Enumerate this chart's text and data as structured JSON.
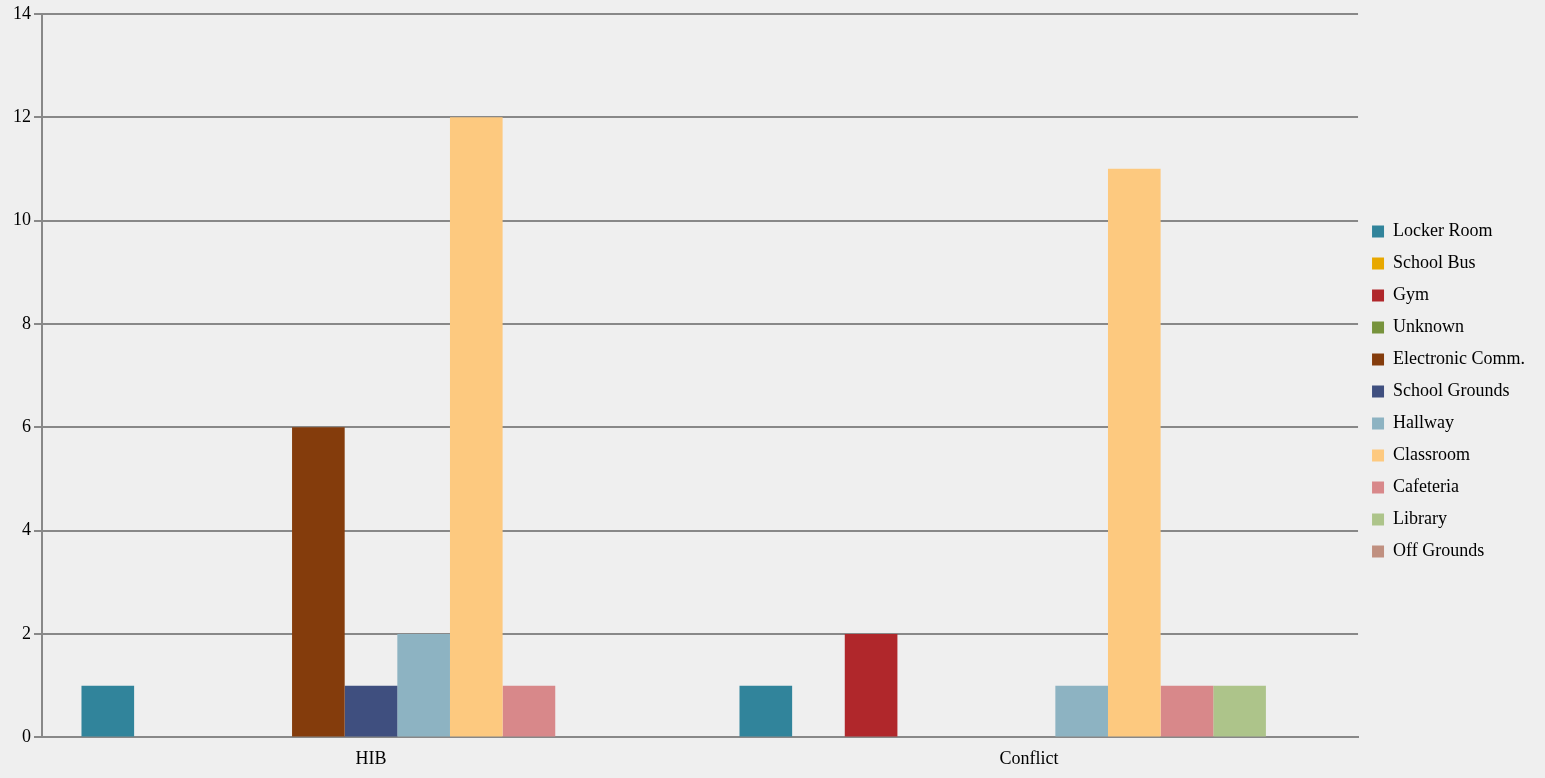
{
  "chart_data": {
    "type": "bar",
    "categories": [
      "HIB",
      "Conflict"
    ],
    "series": [
      {
        "name": "Locker Room",
        "color": "#31849b",
        "values": [
          1,
          1
        ]
      },
      {
        "name": "School Bus",
        "color": "#e8a800",
        "values": [
          0,
          0
        ]
      },
      {
        "name": "Gym",
        "color": "#b0272b",
        "values": [
          0,
          2
        ]
      },
      {
        "name": "Unknown",
        "color": "#77933c",
        "values": [
          0,
          0
        ]
      },
      {
        "name": "Electronic Comm.",
        "color": "#843c0c",
        "values": [
          6,
          0
        ]
      },
      {
        "name": "School Grounds",
        "color": "#3f4f7f",
        "values": [
          1,
          0
        ]
      },
      {
        "name": "Hallway",
        "color": "#8db3c2",
        "values": [
          2,
          1
        ]
      },
      {
        "name": "Classroom",
        "color": "#fdc97f",
        "values": [
          12,
          11
        ]
      },
      {
        "name": "Cafeteria",
        "color": "#d8888a",
        "values": [
          1,
          1
        ]
      },
      {
        "name": "Library",
        "color": "#adc48a",
        "values": [
          0,
          1
        ]
      },
      {
        "name": "Off Grounds",
        "color": "#c09080",
        "values": [
          0,
          0
        ]
      }
    ],
    "ylim": [
      0,
      14
    ],
    "yticks": [
      0,
      2,
      4,
      6,
      8,
      10,
      12,
      14
    ],
    "grid": "y",
    "legend": "right"
  }
}
